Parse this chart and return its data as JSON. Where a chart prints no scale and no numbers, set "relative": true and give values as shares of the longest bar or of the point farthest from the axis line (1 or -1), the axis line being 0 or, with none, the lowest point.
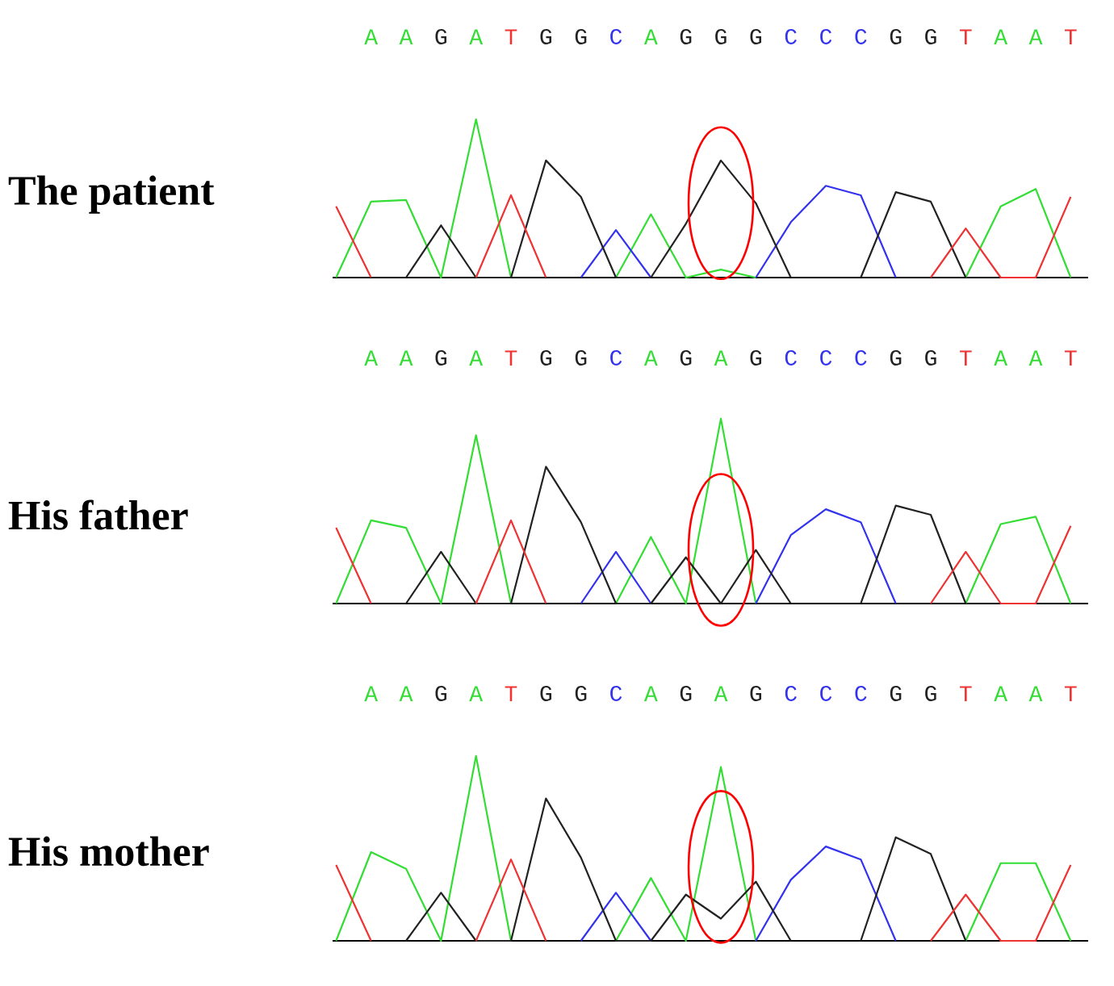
{
  "chart_data": [
    {
      "type": "line",
      "title": "The patient",
      "relative": true,
      "tick_labels": "x",
      "marker": "none",
      "line_style": "solid",
      "categories": [
        null,
        "A",
        "A",
        "G",
        "A",
        "T",
        "G",
        "G",
        "C",
        "A",
        "G",
        "G",
        "G",
        "C",
        "C",
        "C",
        "G",
        "G",
        "T",
        "A",
        "A",
        "T"
      ],
      "series": [
        {
          "color": "#33dd33",
          "values": [
            0,
            0.48,
            0.49,
            0,
            1,
            0,
            null,
            null,
            0,
            0.4,
            0,
            0.05,
            0,
            null,
            null,
            null,
            null,
            null,
            0,
            0.45,
            0.56,
            0
          ]
        },
        {
          "color": "#3333ee",
          "values": [
            null,
            null,
            null,
            null,
            null,
            null,
            null,
            0,
            0.3,
            0,
            null,
            null,
            0,
            0.35,
            0.58,
            0.52,
            0,
            null,
            null,
            null,
            null,
            null
          ]
        },
        {
          "color": "#222222",
          "values": [
            null,
            null,
            0,
            0.33,
            0,
            0,
            0.74,
            0.51,
            0,
            0,
            0.34,
            0.74,
            0.47,
            0,
            null,
            0,
            0.54,
            0.48,
            0,
            null,
            null,
            null
          ]
        },
        {
          "color": "#ee3333",
          "values": [
            0.45,
            0,
            null,
            null,
            0,
            0.52,
            0,
            null,
            null,
            null,
            null,
            null,
            null,
            null,
            null,
            null,
            null,
            0,
            0.31,
            0,
            0,
            0.51
          ]
        }
      ]
    },
    {
      "type": "line",
      "title": "His father",
      "relative": true,
      "tick_labels": "x",
      "marker": "none",
      "line_style": "solid",
      "categories": [
        null,
        "A",
        "A",
        "G",
        "A",
        "T",
        "G",
        "G",
        "C",
        "A",
        "G",
        "A",
        "G",
        "C",
        "C",
        "C",
        "G",
        "G",
        "T",
        "A",
        "A",
        "T"
      ],
      "series": [
        {
          "color": "#33dd33",
          "values": [
            0,
            0.45,
            0.41,
            0,
            0.91,
            0,
            null,
            null,
            0,
            0.36,
            0,
            1,
            0,
            null,
            null,
            null,
            null,
            null,
            0,
            0.43,
            0.47,
            0
          ]
        },
        {
          "color": "#3333ee",
          "values": [
            null,
            null,
            null,
            null,
            null,
            null,
            null,
            0,
            0.28,
            0,
            null,
            null,
            0,
            0.37,
            0.51,
            0.44,
            0,
            null,
            null,
            null,
            null,
            null
          ]
        },
        {
          "color": "#222222",
          "values": [
            null,
            null,
            0,
            0.28,
            0,
            0,
            0.74,
            0.44,
            0,
            0,
            0.25,
            0,
            0.29,
            0,
            null,
            0,
            0.53,
            0.48,
            0,
            null,
            null,
            null
          ]
        },
        {
          "color": "#ee3333",
          "values": [
            0.41,
            0,
            null,
            null,
            0,
            0.45,
            0,
            null,
            null,
            null,
            null,
            null,
            null,
            null,
            null,
            null,
            null,
            0,
            0.28,
            0,
            0,
            0.42
          ]
        }
      ]
    },
    {
      "type": "line",
      "title": "His mother",
      "relative": true,
      "tick_labels": "x",
      "marker": "none",
      "line_style": "solid",
      "categories": [
        null,
        "A",
        "A",
        "G",
        "A",
        "T",
        "G",
        "G",
        "C",
        "A",
        "G",
        "A",
        "G",
        "C",
        "C",
        "C",
        "G",
        "G",
        "T",
        "A",
        "A",
        "T"
      ],
      "series": [
        {
          "color": "#33dd33",
          "values": [
            0,
            0.48,
            0.39,
            0,
            1,
            0,
            null,
            null,
            0,
            0.34,
            0,
            0.94,
            0,
            null,
            null,
            null,
            null,
            null,
            0,
            0.42,
            0.42,
            0
          ]
        },
        {
          "color": "#3333ee",
          "values": [
            null,
            null,
            null,
            null,
            null,
            null,
            null,
            0,
            0.26,
            0,
            null,
            null,
            0,
            0.33,
            0.51,
            0.44,
            0,
            null,
            null,
            null,
            null,
            null
          ]
        },
        {
          "color": "#222222",
          "values": [
            null,
            null,
            0,
            0.26,
            0,
            0,
            0.77,
            0.45,
            0,
            0,
            0.25,
            0.12,
            0.32,
            0,
            null,
            0,
            0.56,
            0.47,
            0,
            null,
            null,
            null
          ]
        },
        {
          "color": "#ee3333",
          "values": [
            0.41,
            0,
            null,
            null,
            0,
            0.44,
            0,
            null,
            null,
            null,
            null,
            null,
            null,
            null,
            null,
            null,
            null,
            0,
            0.25,
            0,
            0,
            0.41
          ]
        }
      ]
    }
  ]
}
